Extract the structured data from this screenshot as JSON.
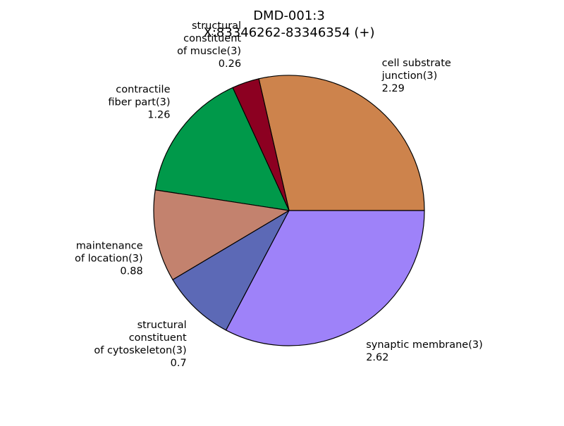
{
  "chart_data": {
    "type": "pie",
    "title": [
      "DMD-001:3",
      "X:83346262-83346354 (+)"
    ],
    "slices": [
      {
        "label": "cell substrate junction(3)",
        "label_lines": [
          "cell substrate",
          "junction(3)"
        ],
        "value": 2.29,
        "value_label": "2.29",
        "color": "#cd834c"
      },
      {
        "label": "structural constituent of muscle(3)",
        "label_lines": [
          "structural",
          "constituent",
          "of muscle(3)"
        ],
        "value": 0.26,
        "value_label": "0.26",
        "color": "#8c0021"
      },
      {
        "label": "contractile fiber part(3)",
        "label_lines": [
          "contractile",
          "fiber part(3)"
        ],
        "value": 1.26,
        "value_label": "1.26",
        "color": "#00994a"
      },
      {
        "label": "maintenance of location(3)",
        "label_lines": [
          "maintenance",
          "of location(3)"
        ],
        "value": 0.88,
        "value_label": "0.88",
        "color": "#c3826e"
      },
      {
        "label": "structural constituent of cytoskeleton(3)",
        "label_lines": [
          "structural",
          "constituent",
          "of cytoskeleton(3)"
        ],
        "value": 0.7,
        "value_label": "0.7",
        "color": "#5c69b6"
      },
      {
        "label": "synaptic membrane(3)",
        "label_lines": [
          "synaptic membrane(3)"
        ],
        "value": 2.62,
        "value_label": "2.62",
        "color": "#9e82f9"
      }
    ],
    "start_angle_deg": 0,
    "direction": "counterclockwise",
    "edge_color": "#000000",
    "legend": "none"
  }
}
